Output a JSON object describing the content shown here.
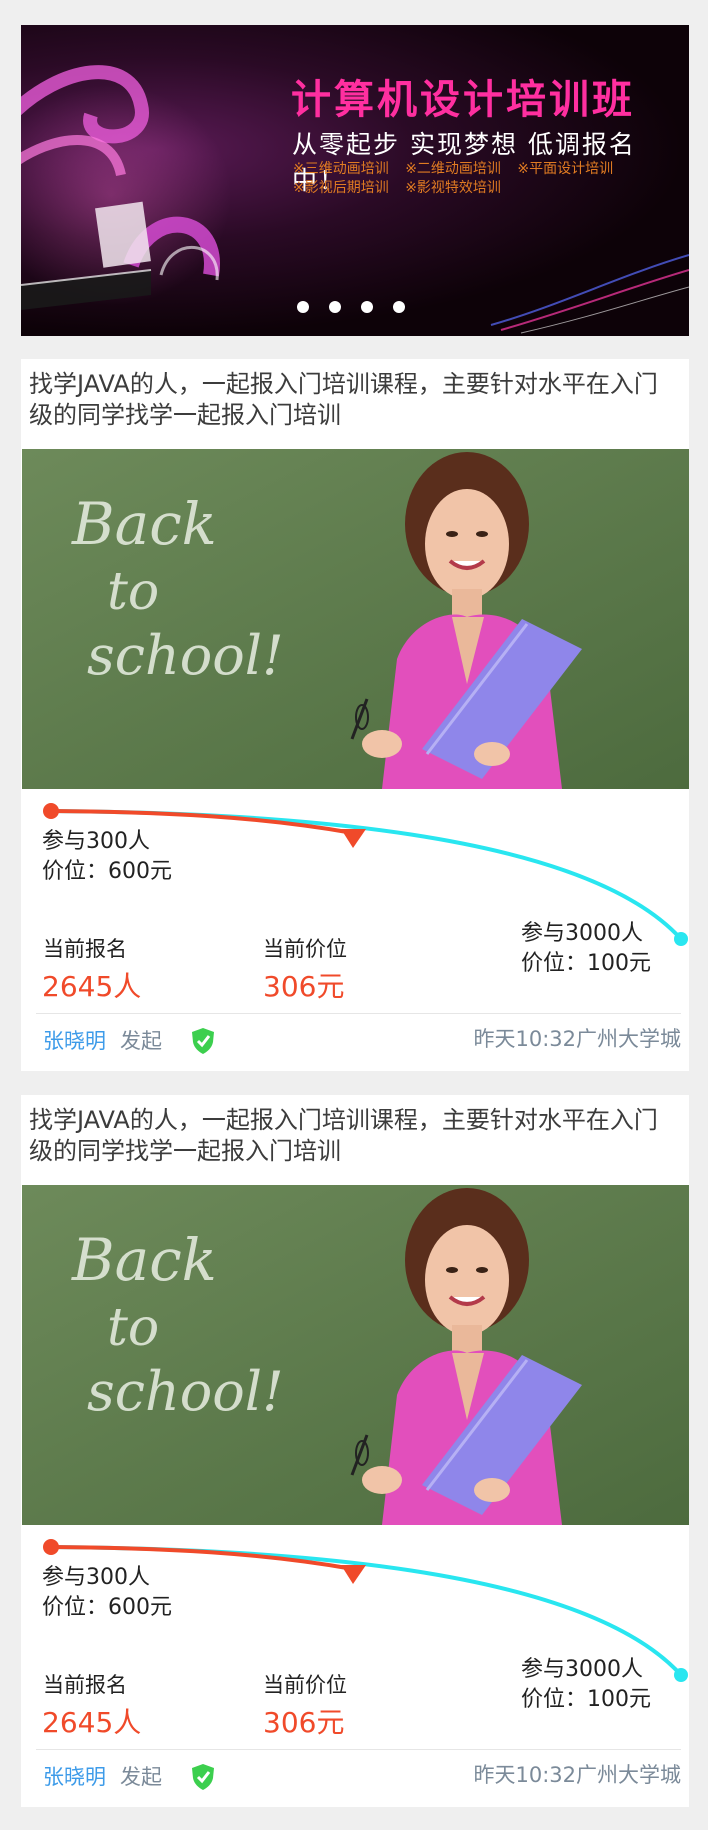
{
  "banner": {
    "title": "计算机设计培训班",
    "subtitle": "从零起步 实现梦想 低调报名中！",
    "courses": [
      "※三维动画培训",
      "※二维动画培训",
      "※平面设计培训",
      "※影视后期培训",
      "※影视特效培训"
    ],
    "slide_count": 4
  },
  "cards": [
    {
      "title": "找学JAVA的人，一起报入门培训课程，主要针对水平在入门级的同学找学一起报入门培训",
      "photo_text": "Back to school!",
      "start_people": "参与300人",
      "start_price": "价位：600元",
      "end_people": "参与3000人",
      "end_price": "价位：100元",
      "current_signup_label": "当前报名",
      "current_signup_value": "2645人",
      "current_price_label": "当前价位",
      "current_price_value": "306元",
      "author": "张晓明",
      "initiated": "发起",
      "meta": "昨天10:32广州大学城"
    },
    {
      "title": "找学JAVA的人，一起报入门培训课程，主要针对水平在入门级的同学找学一起报入门培训",
      "photo_text": "Back to school!",
      "start_people": "参与300人",
      "start_price": "价位：600元",
      "end_people": "参与3000人",
      "end_price": "价位：100元",
      "current_signup_label": "当前报名",
      "current_signup_value": "2645人",
      "current_price_label": "当前价位",
      "current_price_value": "306元",
      "author": "张晓明",
      "initiated": "发起",
      "meta": "昨天10:32广州大学城"
    }
  ],
  "colors": {
    "accent_red": "#f04a2a",
    "accent_cyan": "#29e6f0",
    "link_blue": "#3d9be9",
    "verified_green": "#3ccf4e",
    "banner_pink": "#ff2fa0"
  },
  "icons": {
    "verified": "shield-check-icon",
    "progress_marker": "triangle-down-icon"
  }
}
